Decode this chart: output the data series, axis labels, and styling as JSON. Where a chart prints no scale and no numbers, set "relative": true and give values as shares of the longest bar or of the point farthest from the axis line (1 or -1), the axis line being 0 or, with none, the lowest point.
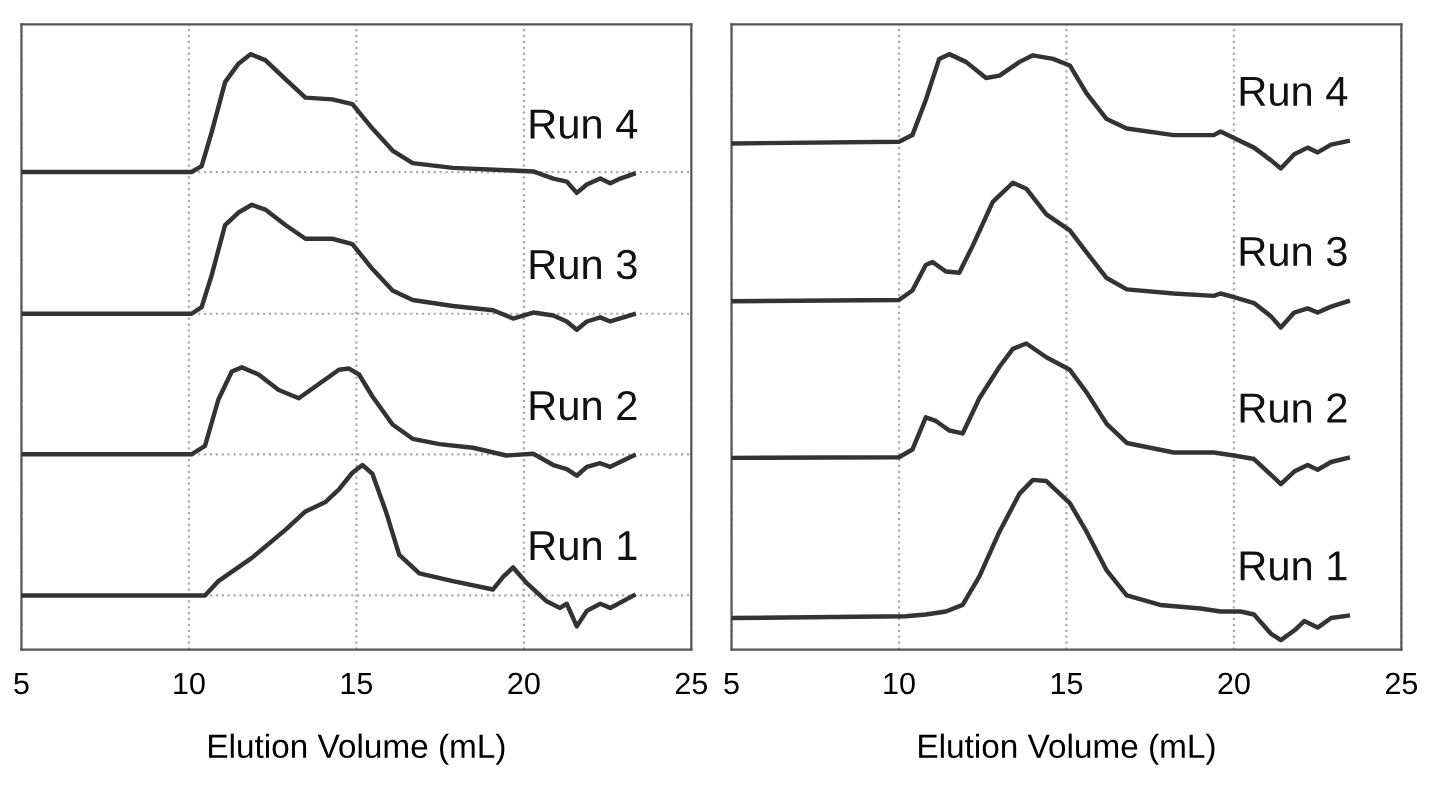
{
  "chart_data": [
    {
      "type": "line",
      "xlabel": "Elution Volume (mL)",
      "xlim": [
        5,
        25
      ],
      "xticks": [
        5,
        10,
        15,
        20,
        25
      ],
      "relative": true,
      "grid": "x",
      "legend": false,
      "marker": "none",
      "line_style": "solid",
      "ref_lines": [
        {
          "axis": "y",
          "value": 0.802,
          "color": "#aaaaaa",
          "line_style": "dotted"
        },
        {
          "axis": "y",
          "value": 0.564,
          "color": "#aaaaaa",
          "line_style": "dotted"
        },
        {
          "axis": "y",
          "value": 0.328,
          "color": "#aaaaaa",
          "line_style": "dotted"
        },
        {
          "axis": "y",
          "value": 0.091,
          "color": "#aaaaaa",
          "line_style": "dotted"
        }
      ],
      "series": [
        {
          "name": "Run 4",
          "color": "#333333",
          "x": [
            5.0,
            10.08,
            10.38,
            10.68,
            11.08,
            11.48,
            11.84,
            12.28,
            12.88,
            13.48,
            14.28,
            14.88,
            15.48,
            16.08,
            16.68,
            17.88,
            19.48,
            20.28,
            20.88,
            21.28,
            21.58,
            21.88,
            22.28,
            22.58,
            22.88,
            23.28
          ],
          "values": [
            0.802,
            0.802,
            0.812,
            0.869,
            0.953,
            0.984,
            1.0,
            0.99,
            0.958,
            0.927,
            0.924,
            0.916,
            0.875,
            0.838,
            0.817,
            0.809,
            0.805,
            0.803,
            0.791,
            0.786,
            0.767,
            0.781,
            0.791,
            0.783,
            0.791,
            0.799
          ]
        },
        {
          "name": "Run 3",
          "color": "#333333",
          "x": [
            5.0,
            10.08,
            10.38,
            10.68,
            11.08,
            11.48,
            11.88,
            12.28,
            12.88,
            13.48,
            14.28,
            14.88,
            15.48,
            16.08,
            16.68,
            17.88,
            19.08,
            19.68,
            20.28,
            20.88,
            21.28,
            21.58,
            21.88,
            22.28,
            22.58,
            23.28
          ],
          "values": [
            0.564,
            0.564,
            0.575,
            0.629,
            0.713,
            0.734,
            0.747,
            0.739,
            0.713,
            0.69,
            0.69,
            0.681,
            0.639,
            0.603,
            0.587,
            0.577,
            0.57,
            0.556,
            0.566,
            0.561,
            0.551,
            0.537,
            0.551,
            0.558,
            0.551,
            0.563
          ]
        },
        {
          "name": "Run 2",
          "color": "#333333",
          "x": [
            5.0,
            10.08,
            10.48,
            10.88,
            11.28,
            11.58,
            12.08,
            12.68,
            13.28,
            13.88,
            14.48,
            14.78,
            15.08,
            15.48,
            16.08,
            16.68,
            17.48,
            18.48,
            19.48,
            20.28,
            20.88,
            21.28,
            21.58,
            21.88,
            22.28,
            22.58,
            23.28
          ],
          "values": [
            0.328,
            0.328,
            0.342,
            0.42,
            0.467,
            0.474,
            0.462,
            0.436,
            0.422,
            0.446,
            0.47,
            0.472,
            0.462,
            0.425,
            0.378,
            0.354,
            0.345,
            0.339,
            0.326,
            0.329,
            0.31,
            0.303,
            0.292,
            0.307,
            0.313,
            0.307,
            0.326
          ]
        },
        {
          "name": "Run 1",
          "color": "#333333",
          "x": [
            5.0,
            10.48,
            10.88,
            11.88,
            12.88,
            13.48,
            14.08,
            14.48,
            14.88,
            15.18,
            15.48,
            15.88,
            16.28,
            16.88,
            17.88,
            19.08,
            19.38,
            19.68,
            20.08,
            20.68,
            21.08,
            21.28,
            21.58,
            21.88,
            22.28,
            22.58,
            23.28
          ],
          "values": [
            0.091,
            0.091,
            0.115,
            0.154,
            0.201,
            0.232,
            0.248,
            0.269,
            0.297,
            0.31,
            0.295,
            0.232,
            0.159,
            0.128,
            0.115,
            0.101,
            0.122,
            0.138,
            0.112,
            0.081,
            0.07,
            0.077,
            0.039,
            0.065,
            0.077,
            0.07,
            0.091
          ]
        }
      ]
    },
    {
      "type": "line",
      "xlabel": "Elution Volume (mL)",
      "xlim": [
        5,
        25
      ],
      "xticks": [
        5,
        10,
        15,
        20,
        25
      ],
      "relative": true,
      "grid": "x",
      "legend": false,
      "marker": "none",
      "line_style": "solid",
      "series": [
        {
          "name": "Run 4",
          "color": "#333333",
          "x": [
            5.0,
            10.0,
            10.4,
            10.8,
            11.2,
            11.5,
            12.0,
            12.6,
            13.0,
            13.6,
            14.0,
            14.6,
            15.1,
            15.6,
            16.2,
            16.8,
            18.2,
            19.4,
            19.6,
            20.0,
            20.6,
            21.1,
            21.4,
            21.8,
            22.2,
            22.5,
            22.9,
            23.4
          ],
          "values": [
            0.85,
            0.853,
            0.864,
            0.923,
            0.992,
            1.0,
            0.987,
            0.96,
            0.964,
            0.987,
            0.998,
            0.992,
            0.981,
            0.934,
            0.891,
            0.875,
            0.864,
            0.864,
            0.87,
            0.859,
            0.843,
            0.822,
            0.808,
            0.832,
            0.843,
            0.835,
            0.848,
            0.854
          ]
        },
        {
          "name": "Run 3",
          "color": "#333333",
          "x": [
            5.0,
            10.0,
            10.4,
            10.8,
            11.0,
            11.4,
            11.8,
            12.2,
            12.8,
            13.4,
            13.8,
            14.4,
            15.1,
            15.6,
            16.2,
            16.8,
            18.2,
            19.4,
            19.6,
            20.0,
            20.6,
            21.1,
            21.4,
            21.8,
            22.2,
            22.5,
            22.9,
            23.4
          ],
          "values": [
            0.585,
            0.587,
            0.603,
            0.646,
            0.651,
            0.635,
            0.633,
            0.678,
            0.752,
            0.784,
            0.774,
            0.731,
            0.704,
            0.667,
            0.624,
            0.605,
            0.598,
            0.594,
            0.598,
            0.592,
            0.582,
            0.56,
            0.541,
            0.566,
            0.573,
            0.566,
            0.576,
            0.585
          ]
        },
        {
          "name": "Run 2",
          "color": "#333333",
          "x": [
            5.0,
            10.0,
            10.4,
            10.8,
            11.1,
            11.5,
            11.9,
            12.4,
            13.0,
            13.4,
            13.8,
            14.4,
            15.1,
            15.6,
            16.2,
            16.8,
            18.2,
            19.4,
            20.0,
            20.6,
            21.1,
            21.4,
            21.8,
            22.2,
            22.5,
            22.9,
            23.4
          ],
          "values": [
            0.322,
            0.323,
            0.336,
            0.39,
            0.384,
            0.368,
            0.363,
            0.422,
            0.475,
            0.505,
            0.514,
            0.491,
            0.47,
            0.432,
            0.379,
            0.347,
            0.331,
            0.331,
            0.326,
            0.32,
            0.294,
            0.278,
            0.299,
            0.31,
            0.302,
            0.315,
            0.322
          ]
        },
        {
          "name": "Run 1",
          "color": "#333333",
          "x": [
            5.0,
            10.2,
            10.8,
            11.4,
            11.9,
            12.4,
            13.0,
            13.6,
            14.0,
            14.4,
            15.1,
            15.6,
            16.2,
            16.8,
            17.8,
            19.0,
            19.6,
            20.2,
            20.6,
            21.1,
            21.4,
            21.8,
            22.1,
            22.5,
            22.9,
            23.4
          ],
          "values": [
            0.053,
            0.056,
            0.059,
            0.064,
            0.075,
            0.123,
            0.198,
            0.262,
            0.285,
            0.283,
            0.246,
            0.198,
            0.133,
            0.091,
            0.075,
            0.069,
            0.064,
            0.064,
            0.059,
            0.027,
            0.016,
            0.032,
            0.048,
            0.037,
            0.053,
            0.057
          ]
        }
      ]
    }
  ]
}
